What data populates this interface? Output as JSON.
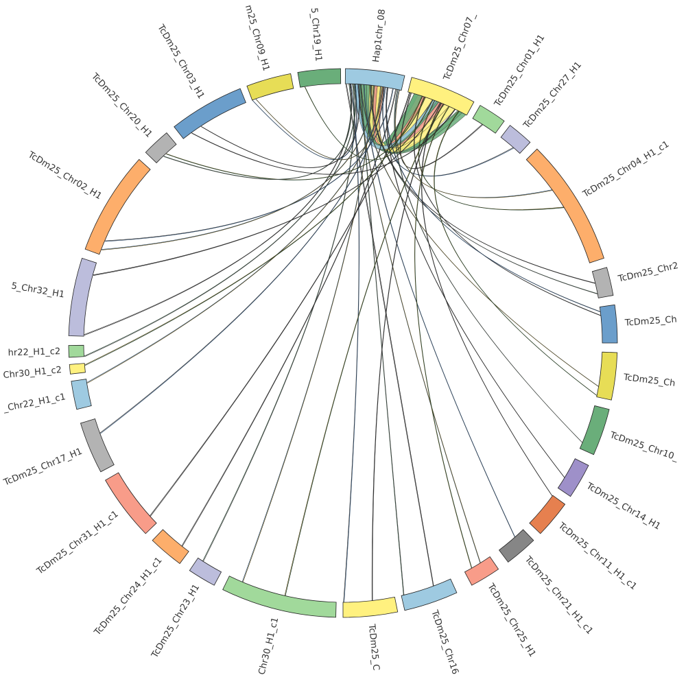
{
  "nodes": [
    {
      "label": "Hap1chr_08",
      "color": "#9ecae1"
    },
    {
      "label": "TcDm25_Chr07_",
      "color": "#fff17f"
    },
    {
      "label": "TcDm25_Chr01_H1",
      "color": "#a1d99b"
    },
    {
      "label": "TcDm25_Chr27_H1",
      "color": "#bcbddc"
    },
    {
      "label": "TcDm25_Chr04_H1_c1",
      "color": "#fdae6b"
    },
    {
      "label": "TcDm25_Chr2",
      "color": "#b3b3b3"
    },
    {
      "label": "TcDm25_Ch",
      "color": "#6b9ecb"
    },
    {
      "label": "TcDm25_Ch",
      "color": "#e7dd56"
    },
    {
      "label": "TcDm25_Chr10_",
      "color": "#6aae7a"
    },
    {
      "label": "TcDm25_Chr14_H1",
      "color": "#9e90c9"
    },
    {
      "label": "TcDm25_Chr11_H1_c1",
      "color": "#e6804f"
    },
    {
      "label": "TcDm25_Chr21_H1_c1",
      "color": "#868686"
    },
    {
      "label": "TcDm25_Chr25_H1",
      "color": "#f89c89"
    },
    {
      "label": "TcDm25_Chr16",
      "color": "#9ecae1"
    },
    {
      "label": "TcDm25_C",
      "color": "#fff17f"
    },
    {
      "label": "Chr30_H1_c1",
      "color": "#a1d99b"
    },
    {
      "label": "TcDm25_Chr23_H1",
      "color": "#bcbddc"
    },
    {
      "label": "TcDm25_Chr24_H1_c1",
      "color": "#fdae6b"
    },
    {
      "label": "TcDm25_Chr31_H1_c1",
      "color": "#f89c89"
    },
    {
      "label": "TcDm25_Chr17_H1",
      "color": "#b3b3b3"
    },
    {
      "label": "_Chr22_H1_c1",
      "color": "#9ecae1"
    },
    {
      "label": "Chr30_H1_c2",
      "color": "#fff17f"
    },
    {
      "label": "hr22_H1_c2",
      "color": "#a1d99b"
    },
    {
      "label": "5_Chr32_H1",
      "color": "#bcbddc"
    },
    {
      "label": "TcDm25_Chr02_H1",
      "color": "#fdae6b"
    },
    {
      "label": "TcDm25_Chr20_H1",
      "color": "#b3b3b3"
    },
    {
      "label": "TcDm25_Chr03_H1",
      "color": "#6b9ecb"
    },
    {
      "label": "m25_Chr09_H1",
      "color": "#e7dd56"
    },
    {
      "label": "5_Chr19_H1",
      "color": "#6aae7a"
    }
  ]
}
